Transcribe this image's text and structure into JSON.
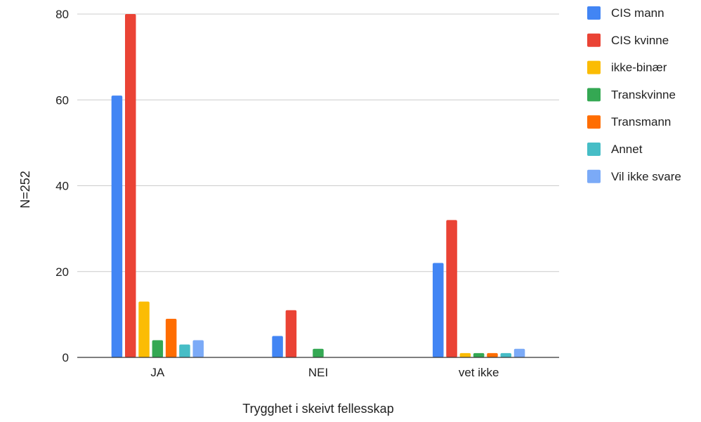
{
  "chart_data": {
    "type": "bar",
    "categories": [
      "JA",
      "NEI",
      "vet ikke"
    ],
    "series": [
      {
        "name": "CIS mann",
        "color": "#4285F4",
        "values": [
          61,
          5,
          22
        ]
      },
      {
        "name": "CIS kvinne",
        "color": "#EA4335",
        "values": [
          80,
          11,
          32
        ]
      },
      {
        "name": "ikke-binær",
        "color": "#FBBC04",
        "values": [
          13,
          0,
          1
        ]
      },
      {
        "name": "Transkvinne",
        "color": "#34A853",
        "values": [
          4,
          2,
          1
        ]
      },
      {
        "name": "Transmann",
        "color": "#FF6D01",
        "values": [
          9,
          0,
          1
        ]
      },
      {
        "name": "Annet",
        "color": "#46BDC6",
        "values": [
          3,
          0,
          1
        ]
      },
      {
        "name": "Vil ikke svare",
        "color": "#7BAAF7",
        "values": [
          4,
          0,
          2
        ]
      }
    ],
    "xlabel": "Trygghet i skeivt fellesskap",
    "ylabel": "N=252",
    "ylim": [
      0,
      80
    ],
    "yticks": [
      0,
      20,
      40,
      60,
      80
    ],
    "grid": true,
    "legend_position": "right"
  }
}
